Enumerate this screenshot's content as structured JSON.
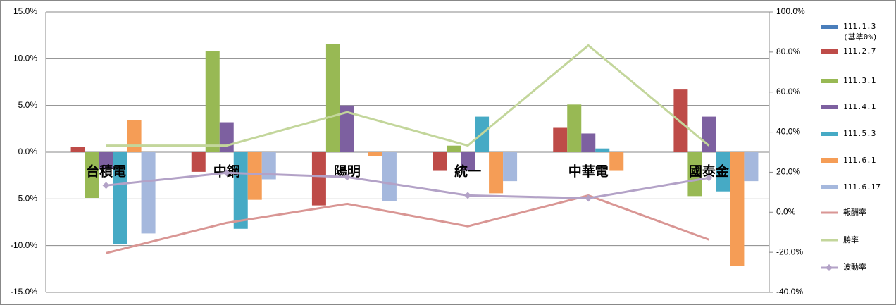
{
  "chart_data": {
    "type": "bar-line",
    "categories": [
      "台積電",
      "中鋼",
      "陽明",
      "統一",
      "中華電",
      "國泰金"
    ],
    "series": [
      {
        "name": "111.1.3 (基準0%)",
        "color": "#4a7ebb",
        "values": [
          0,
          0,
          0,
          0,
          0,
          0
        ]
      },
      {
        "name": "111.2.7",
        "color": "#be4b48",
        "values": [
          0.6,
          -2.1,
          -5.7,
          -2.0,
          2.6,
          6.7
        ]
      },
      {
        "name": "111.3.1",
        "color": "#98b954",
        "values": [
          -4.9,
          10.8,
          11.6,
          0.7,
          5.1,
          -4.7
        ]
      },
      {
        "name": "111.4.1",
        "color": "#7d60a0",
        "values": [
          -1.8,
          3.2,
          5.0,
          -2.0,
          2.0,
          3.8
        ]
      },
      {
        "name": "111.5.3",
        "color": "#46aac5",
        "values": [
          -9.8,
          -8.2,
          0,
          3.8,
          0.4,
          -4.2
        ]
      },
      {
        "name": "111.6.1",
        "color": "#f59d56",
        "values": [
          3.4,
          -5.1,
          -0.4,
          -4.4,
          -2.0,
          -12.2
        ]
      },
      {
        "name": "111.6.17",
        "color": "#a5b8dd",
        "values": [
          -8.7,
          -2.9,
          -5.2,
          -3.1,
          0,
          -3.1
        ]
      },
      {
        "name": "報酬率",
        "type": "line",
        "axis": "y2",
        "color": "#d99694",
        "values": [
          -20.4,
          -5.3,
          4.2,
          -7.0,
          8.4,
          -13.7
        ]
      },
      {
        "name": "勝率",
        "type": "line",
        "axis": "y2",
        "color": "#c3d69b",
        "values": [
          33.3,
          33.3,
          50.0,
          33.3,
          83.3,
          33.3
        ]
      },
      {
        "name": "波動率",
        "type": "line",
        "axis": "y2",
        "color": "#b3a2c7",
        "marker": "diamond",
        "values": [
          13.4,
          19.7,
          17.6,
          8.4,
          7.0,
          17.2
        ]
      }
    ],
    "ylim": [
      -15,
      15
    ],
    "yticks": [
      {
        "value": -15,
        "label": "-15.0%"
      },
      {
        "value": -10,
        "label": "-10.0%"
      },
      {
        "value": -5,
        "label": "-5.0%"
      },
      {
        "value": 0,
        "label": "0.0%"
      },
      {
        "value": 5,
        "label": "5.0%"
      },
      {
        "value": 10,
        "label": "10.0%"
      },
      {
        "value": 15,
        "label": "15.0%"
      }
    ],
    "y2lim": [
      -40,
      100
    ],
    "y2ticks": [
      {
        "value": -40,
        "label": "-40.0%"
      },
      {
        "value": -20,
        "label": "-20.0%"
      },
      {
        "value": 0,
        "label": "0.0%"
      },
      {
        "value": 20,
        "label": "20.0%"
      },
      {
        "value": 40,
        "label": "40.0%"
      },
      {
        "value": 60,
        "label": "60.0%"
      },
      {
        "value": 80,
        "label": "80.0%"
      },
      {
        "value": 100,
        "label": "100.0%"
      }
    ],
    "grid": true,
    "legend": "right"
  }
}
